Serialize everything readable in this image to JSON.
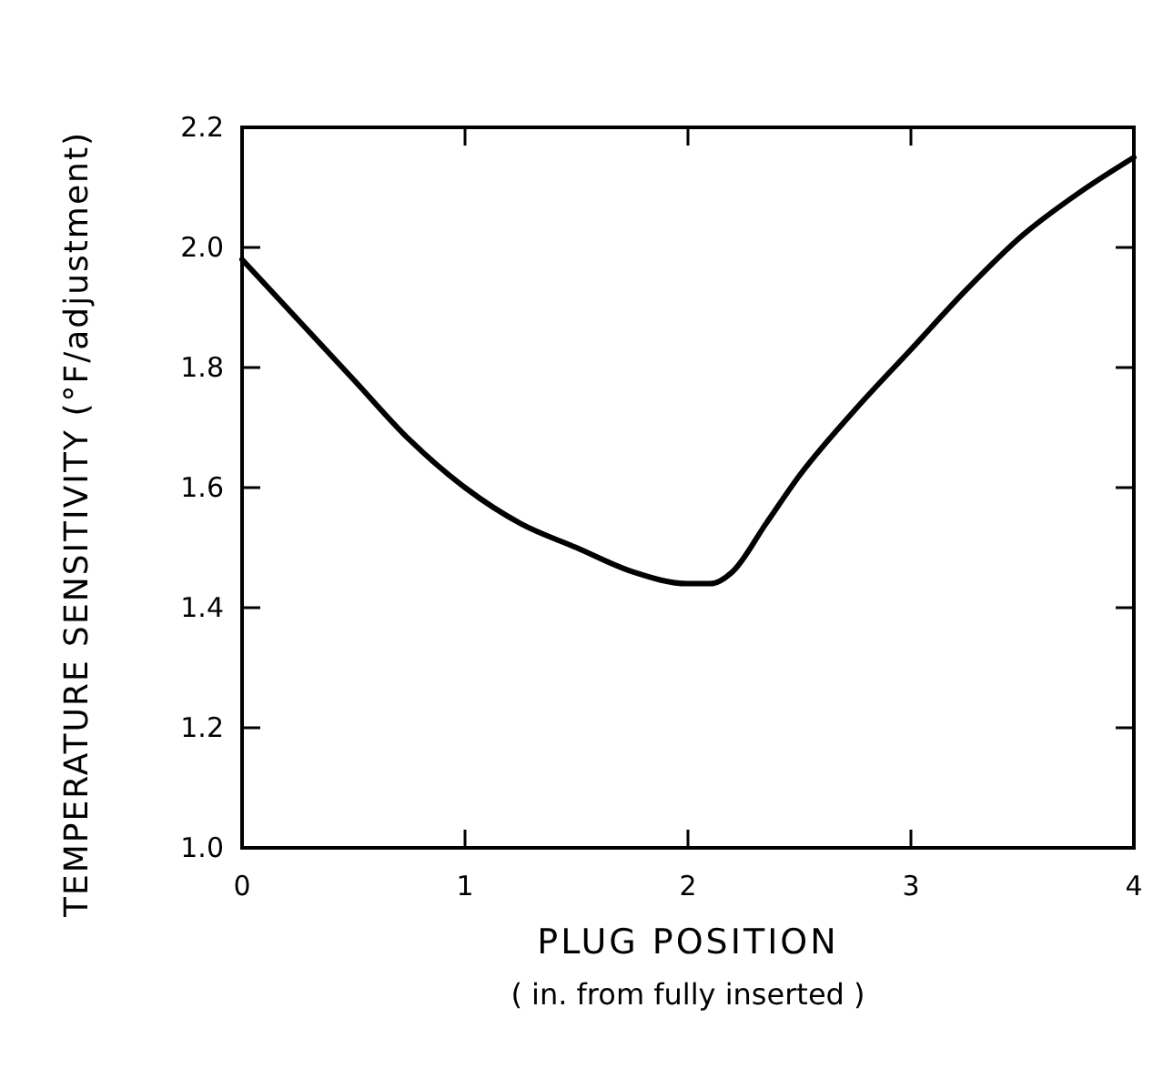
{
  "chart_data": {
    "type": "line",
    "xlabel": "PLUG POSITION\n( in. from fully inserted )",
    "ylabel": "TEMPERATURE  SENSITIVITY (°F/adjustment)",
    "x": [
      0,
      0.25,
      0.5,
      0.75,
      1,
      1.25,
      1.5,
      1.75,
      2,
      2.1,
      2.2,
      2.35,
      2.5,
      2.75,
      3,
      3.25,
      3.5,
      3.75,
      4
    ],
    "series": [
      {
        "color": "#000000",
        "values": [
          1.98,
          1.88,
          1.78,
          1.68,
          1.6,
          1.54,
          1.5,
          1.46,
          1.44,
          1.44,
          1.46,
          1.54,
          1.62,
          1.73,
          1.83,
          1.93,
          2.02,
          2.09,
          2.15
        ]
      }
    ],
    "xlim": [
      0,
      4
    ],
    "ylim": [
      1.0,
      2.2
    ],
    "xticks": [
      0,
      1,
      2,
      3,
      4
    ],
    "yticks": [
      {
        "value": 1.0,
        "label": "1.0"
      },
      1.2,
      1.4,
      1.6,
      1.8,
      {
        "value": 2.0,
        "label": "2.0"
      },
      2.2
    ],
    "grid": false,
    "marker": "none",
    "line_style": "solid"
  }
}
